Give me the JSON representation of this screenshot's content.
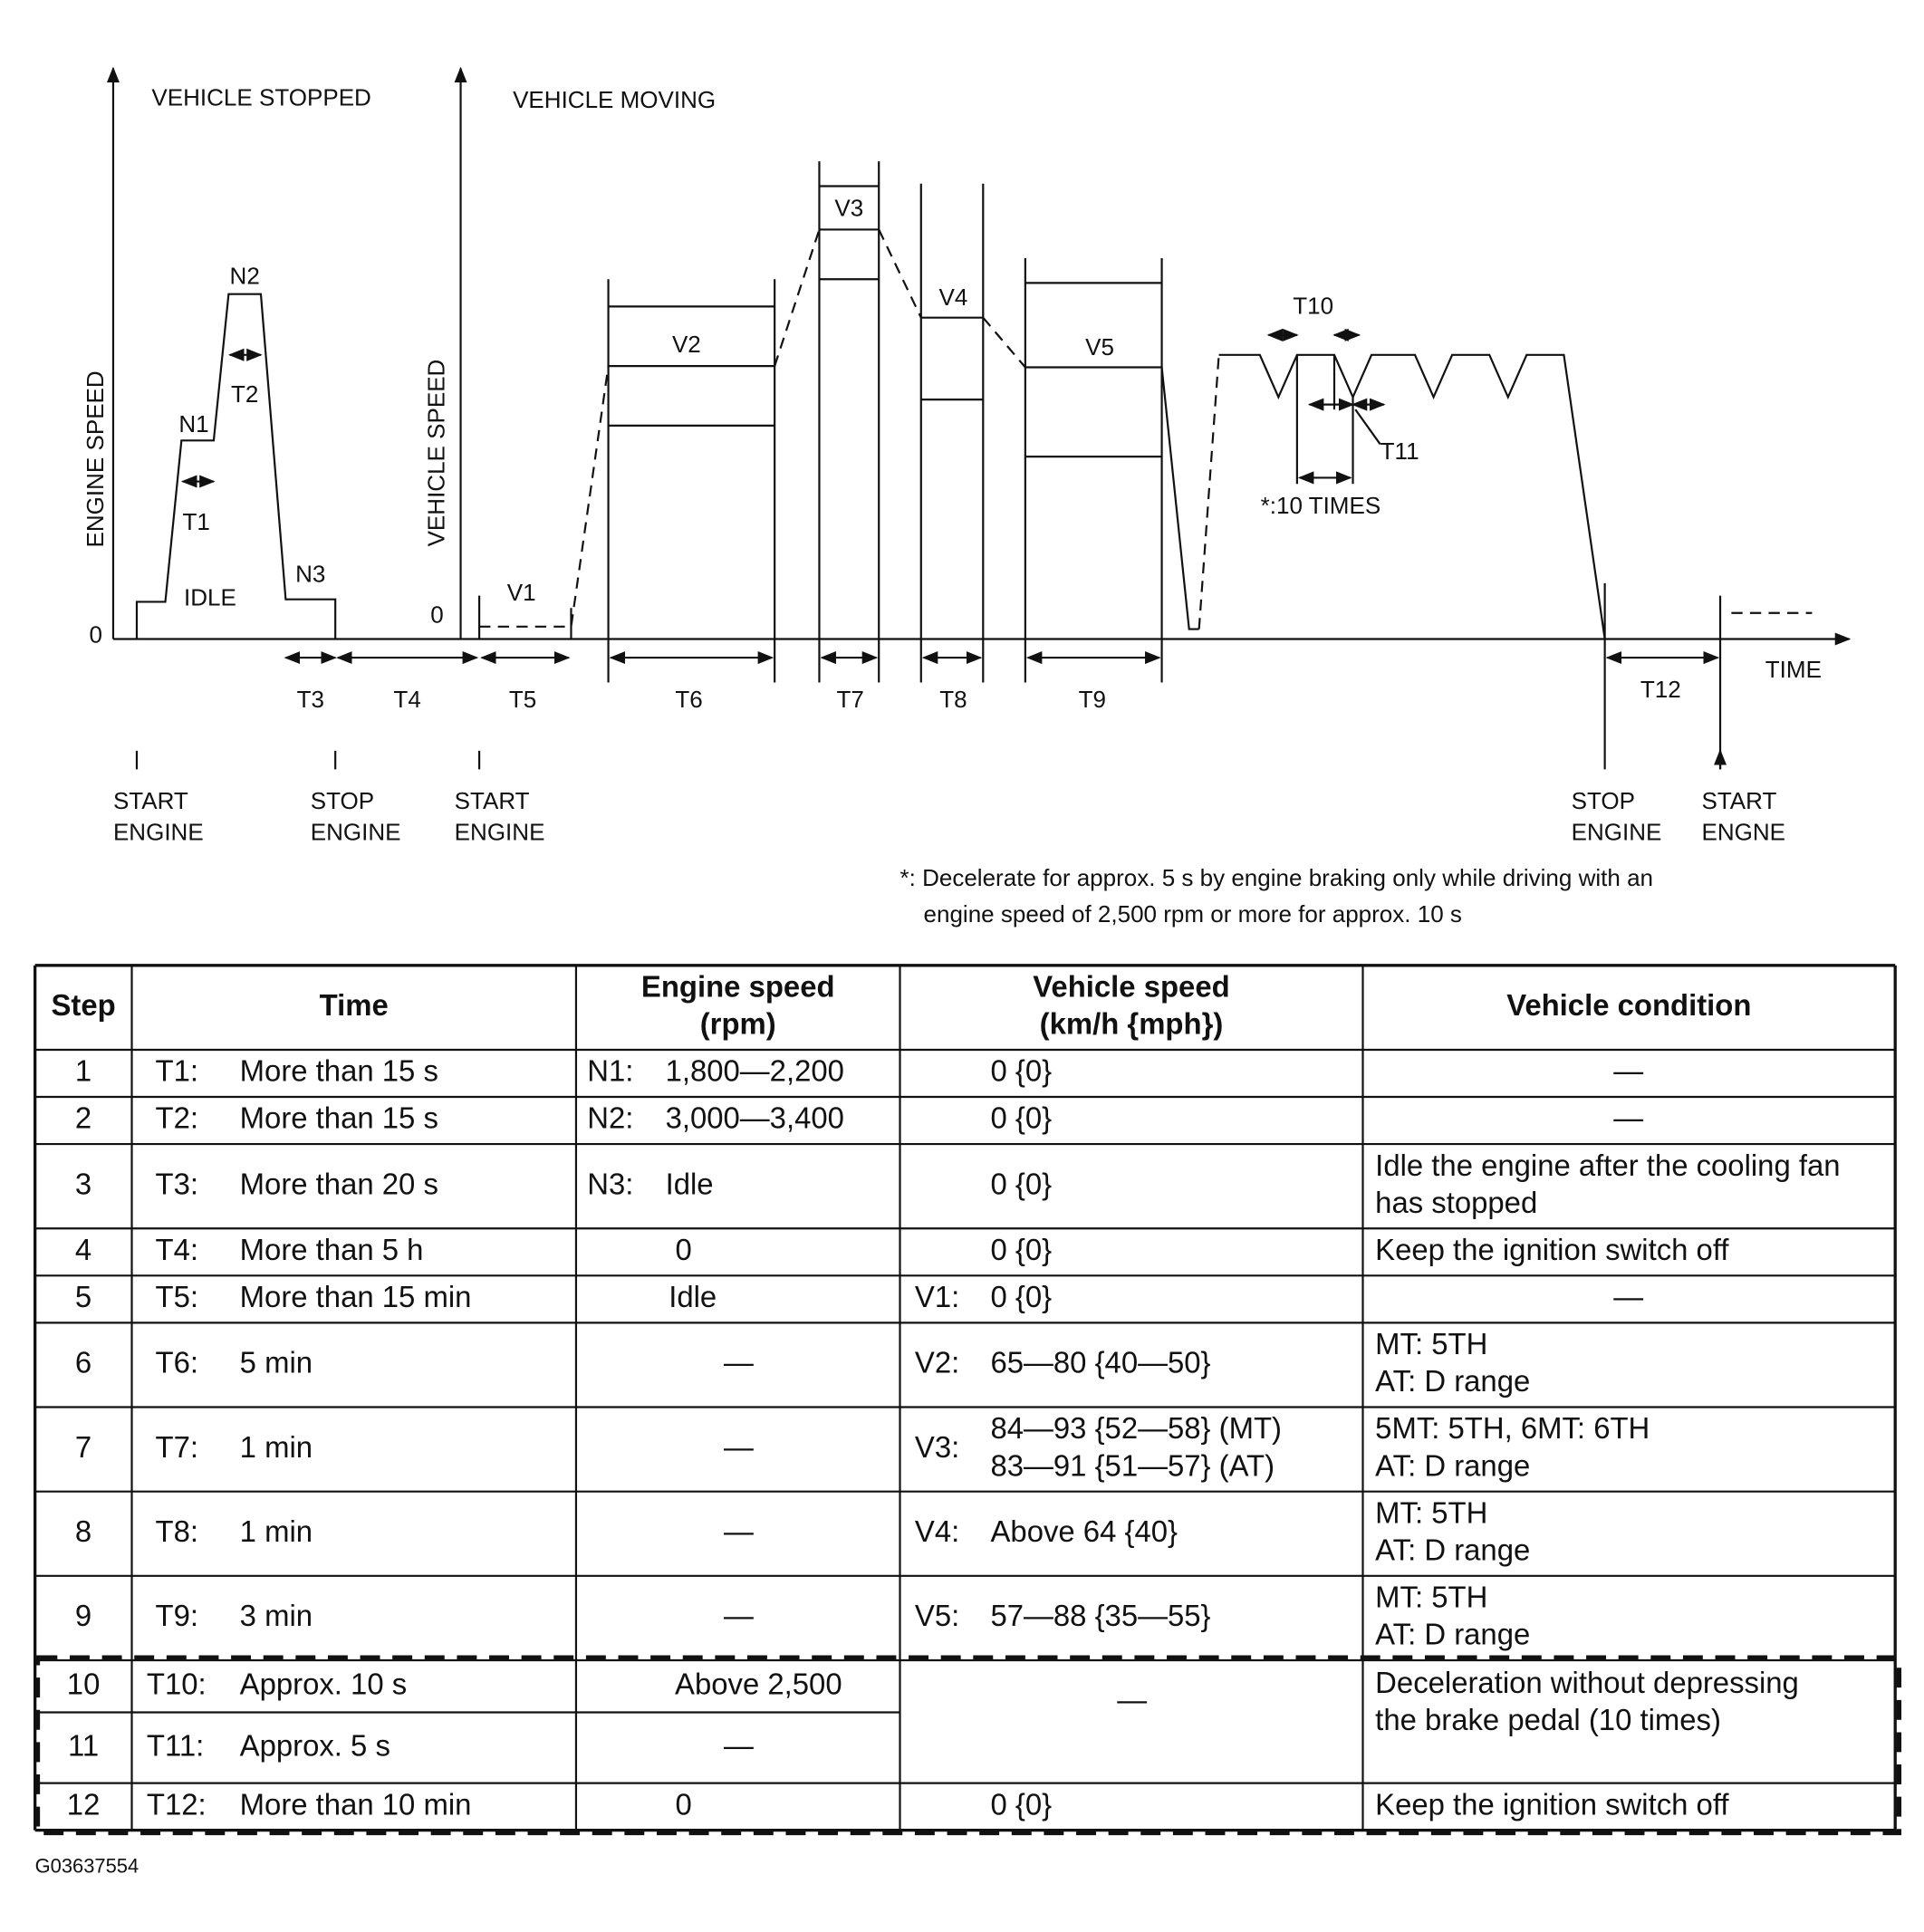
{
  "diagram": {
    "labels": {
      "vehicle_stopped": "VEHICLE STOPPED",
      "vehicle_moving": "VEHICLE MOVING",
      "engine_speed": "ENGINE SPEED",
      "vehicle_speed": "VEHICLE SPEED",
      "zero_engine": "0",
      "zero_vehicle": "0",
      "idle": "IDLE",
      "n1": "N1",
      "n2": "N2",
      "n3": "N3",
      "t1": "T1",
      "t2": "T2",
      "t3": "T3",
      "t4": "T4",
      "t5": "T5",
      "t6": "T6",
      "t7": "T7",
      "t8": "T8",
      "t9": "T9",
      "t10": "T10",
      "t11": "T11",
      "t12": "T12",
      "v1": "V1",
      "v2": "V2",
      "v3": "V3",
      "v4": "V4",
      "v5": "V5",
      "time": "TIME",
      "ten_times": "*:10 TIMES"
    },
    "events": [
      [
        "START",
        "ENGINE"
      ],
      [
        "STOP",
        "ENGINE"
      ],
      [
        "START",
        "ENGINE"
      ],
      [
        "STOP",
        "ENGINE"
      ],
      [
        "START",
        "ENGNE"
      ]
    ],
    "note": [
      "*: Decelerate for approx. 5 s by engine braking only while driving with an",
      "engine speed of 2,500 rpm or more for approx. 10 s"
    ]
  },
  "table": {
    "header": [
      [
        "Step"
      ],
      [
        "Time"
      ],
      [
        "Engine speed",
        "(rpm)"
      ],
      [
        "Vehicle speed",
        "(km/h {mph})"
      ],
      [
        "Vehicle condition"
      ]
    ],
    "rows": [
      {
        "step": "1",
        "time_id": "T1:",
        "time": "More than 15 s",
        "engine_id": "N1:",
        "engine": "1,800—2,200",
        "vehicle": [
          "0 {0}"
        ],
        "condition": [
          "—"
        ]
      },
      {
        "step": "2",
        "time_id": "T2:",
        "time": "More than 15 s",
        "engine_id": "N2:",
        "engine": "3,000—3,400",
        "vehicle": [
          "0 {0}"
        ],
        "condition": [
          "—"
        ]
      },
      {
        "step": "3",
        "time_id": "T3:",
        "time": "More than 20 s",
        "engine_id": "N3:",
        "engine": "Idle",
        "vehicle": [
          "0 {0}"
        ],
        "condition": [
          "Idle the engine after the cooling fan",
          "has stopped"
        ]
      },
      {
        "step": "4",
        "time_id": "T4:",
        "time": "More than 5 h",
        "engine": "0",
        "vehicle": [
          "0 {0}"
        ],
        "condition": [
          "Keep the ignition switch off"
        ]
      },
      {
        "step": "5",
        "time_id": "T5:",
        "time": "More than 15 min",
        "engine": "Idle",
        "vehicle_id": "V1:",
        "vehicle": [
          "0 {0}"
        ],
        "condition": [
          "—"
        ]
      },
      {
        "step": "6",
        "time_id": "T6:",
        "time": "5 min",
        "engine": "—",
        "vehicle_id": "V2:",
        "vehicle": [
          "65—80 {40—50}"
        ],
        "condition": [
          "MT: 5TH",
          "AT: D range"
        ]
      },
      {
        "step": "7",
        "time_id": "T7:",
        "time": "1 min",
        "engine": "—",
        "vehicle_id": "V3:",
        "vehicle": [
          "84—93 {52—58} (MT)",
          "83—91 {51—57} (AT)"
        ],
        "condition": [
          "5MT: 5TH, 6MT: 6TH",
          "AT: D range"
        ]
      },
      {
        "step": "8",
        "time_id": "T8:",
        "time": "1 min",
        "engine": "—",
        "vehicle_id": "V4:",
        "vehicle": [
          "Above 64 {40}"
        ],
        "condition": [
          "MT: 5TH",
          "AT: D range"
        ]
      },
      {
        "step": "9",
        "time_id": "T9:",
        "time": "3 min",
        "engine": "—",
        "vehicle_id": "V5:",
        "vehicle": [
          "57—88 {35—55}"
        ],
        "condition": [
          "MT: 5TH",
          "AT: D range"
        ]
      },
      {
        "step": "10",
        "time_id": "T10:",
        "time": "Approx. 10 s",
        "engine": "Above 2,500",
        "vehicle": [
          "—"
        ],
        "condition": [
          "Deceleration without depressing",
          "the brake pedal (10 times)"
        ]
      },
      {
        "step": "11",
        "time_id": "T11:",
        "time": "Approx. 5 s",
        "engine": "—"
      },
      {
        "step": "12",
        "time_id": "T12:",
        "time": "More than 10 min",
        "engine": "0",
        "vehicle": [
          "0 {0}"
        ],
        "condition": [
          "Keep the ignition switch off"
        ]
      }
    ]
  },
  "figure_id": "G03637554"
}
